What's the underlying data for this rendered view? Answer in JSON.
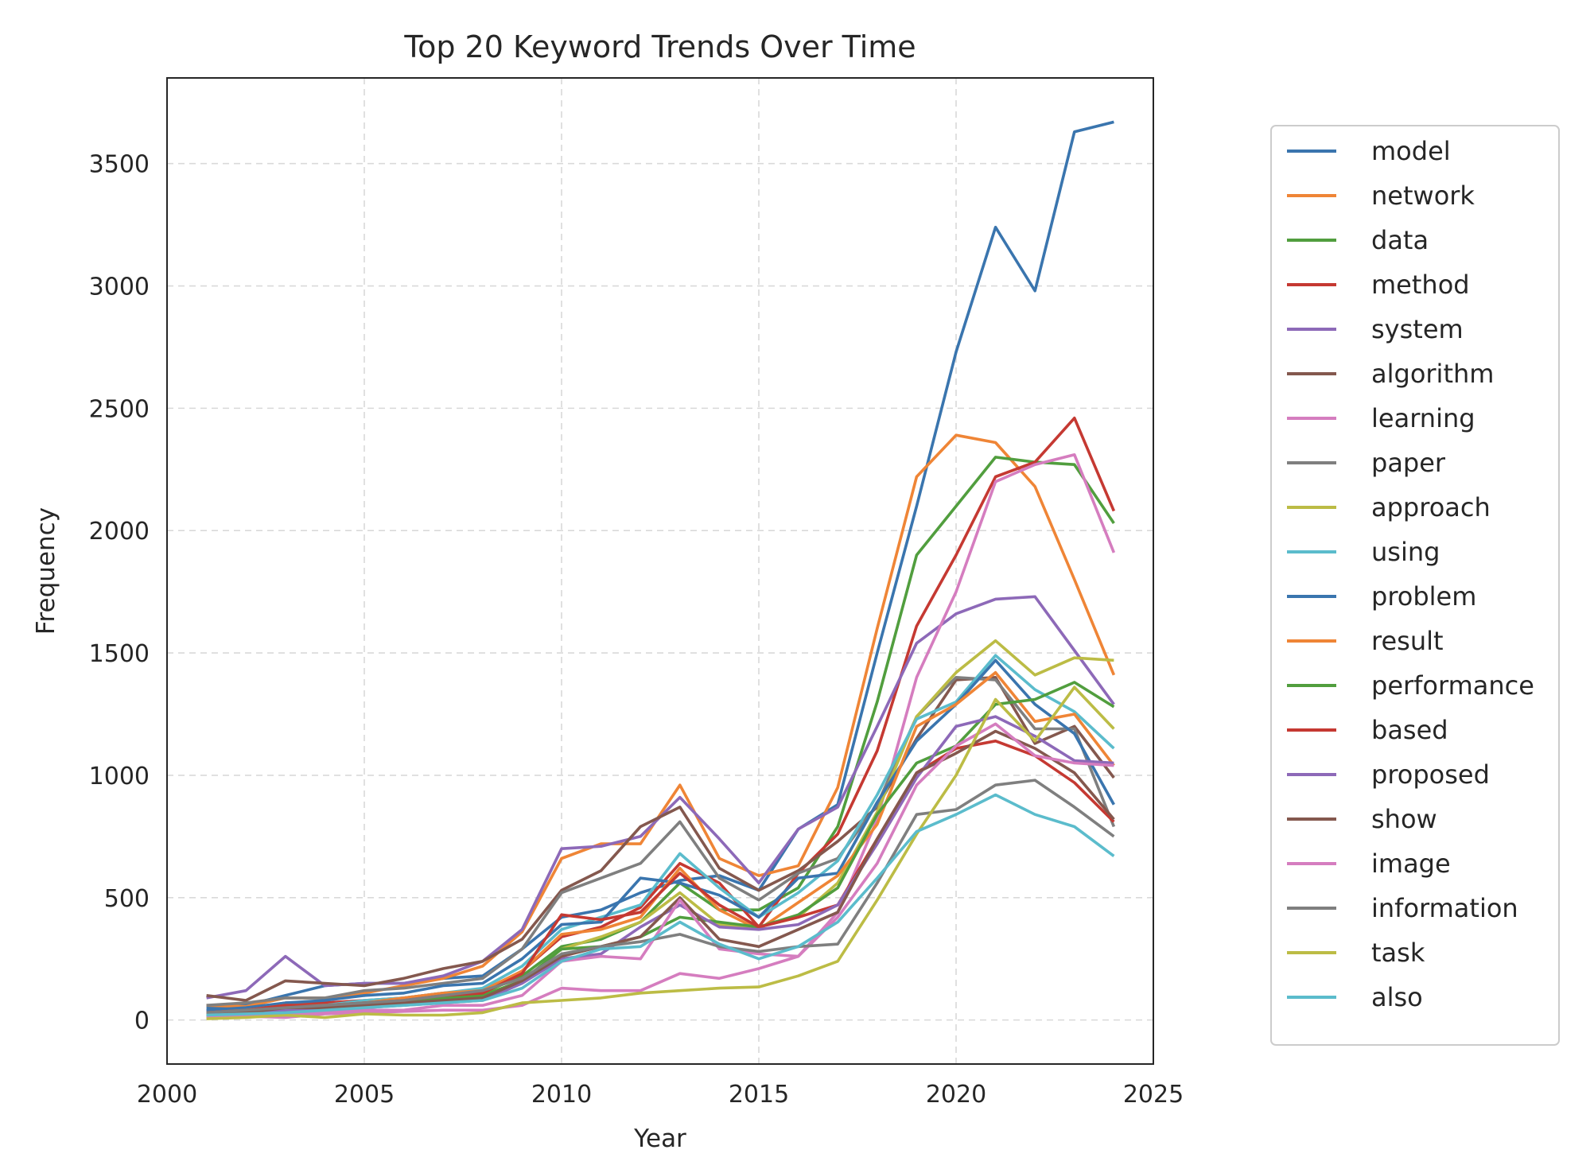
{
  "chart_data": {
    "type": "line",
    "title": "Top 20 Keyword Trends Over Time",
    "xlabel": "Year",
    "ylabel": "Frequency",
    "xlim": [
      2000,
      2025
    ],
    "ylim": [
      -180,
      3850
    ],
    "xticks": [
      2000,
      2005,
      2010,
      2015,
      2020,
      2025
    ],
    "yticks": [
      0,
      500,
      1000,
      1500,
      2000,
      2500,
      3000,
      3500
    ],
    "grid": true,
    "legend_position": "right",
    "x": [
      2001,
      2002,
      2003,
      2004,
      2005,
      2006,
      2007,
      2008,
      2009,
      2010,
      2011,
      2012,
      2013,
      2014,
      2015,
      2016,
      2017,
      2018,
      2019,
      2020,
      2021,
      2022,
      2023,
      2024
    ],
    "series": [
      {
        "name": "model",
        "color": "#3a75ae",
        "values": [
          50,
          60,
          100,
          140,
          150,
          150,
          170,
          180,
          290,
          420,
          450,
          520,
          570,
          590,
          530,
          780,
          880,
          1500,
          2100,
          2730,
          3240,
          2980,
          3630,
          3670
        ]
      },
      {
        "name": "network",
        "color": "#ef8536",
        "values": [
          60,
          55,
          90,
          90,
          110,
          140,
          170,
          220,
          360,
          660,
          720,
          720,
          960,
          660,
          590,
          630,
          950,
          1600,
          2220,
          2390,
          2360,
          2180,
          1800,
          1410
        ]
      },
      {
        "name": "data",
        "color": "#519e3e",
        "values": [
          30,
          40,
          60,
          60,
          70,
          80,
          100,
          110,
          180,
          300,
          330,
          400,
          560,
          450,
          450,
          540,
          790,
          1300,
          1900,
          2100,
          2300,
          2280,
          2270,
          2030
        ]
      },
      {
        "name": "method",
        "color": "#c53932",
        "values": [
          40,
          45,
          70,
          70,
          80,
          90,
          110,
          120,
          200,
          340,
          380,
          460,
          640,
          560,
          380,
          600,
          760,
          1100,
          1610,
          1900,
          2220,
          2280,
          2460,
          2080
        ]
      },
      {
        "name": "system",
        "color": "#8d69b8",
        "values": [
          90,
          120,
          260,
          140,
          150,
          150,
          180,
          240,
          370,
          700,
          710,
          750,
          910,
          740,
          560,
          780,
          870,
          1200,
          1540,
          1660,
          1720,
          1730,
          1510,
          1290
        ]
      },
      {
        "name": "algorithm",
        "color": "#84584e",
        "values": [
          100,
          80,
          160,
          150,
          140,
          170,
          210,
          240,
          330,
          530,
          610,
          790,
          870,
          620,
          530,
          610,
          730,
          870,
          1150,
          1390,
          1400,
          1130,
          1200,
          990
        ]
      },
      {
        "name": "learning",
        "color": "#d57dbf",
        "values": [
          10,
          15,
          10,
          25,
          30,
          35,
          40,
          40,
          60,
          130,
          120,
          120,
          190,
          170,
          210,
          260,
          440,
          820,
          1400,
          1750,
          2200,
          2270,
          2310,
          1910
        ]
      },
      {
        "name": "paper",
        "color": "#7f7f7f",
        "values": [
          60,
          70,
          90,
          90,
          120,
          130,
          150,
          170,
          290,
          520,
          580,
          640,
          810,
          580,
          490,
          600,
          660,
          880,
          1240,
          1400,
          1390,
          1190,
          1190,
          790
        ]
      },
      {
        "name": "approach",
        "color": "#bcbc45",
        "values": [
          20,
          30,
          50,
          40,
          60,
          70,
          90,
          100,
          160,
          290,
          340,
          400,
          520,
          390,
          380,
          420,
          560,
          850,
          1240,
          1420,
          1550,
          1410,
          1480,
          1470
        ]
      },
      {
        "name": "using",
        "color": "#5bbccc",
        "values": [
          30,
          40,
          60,
          60,
          80,
          90,
          110,
          130,
          220,
          370,
          420,
          470,
          680,
          540,
          420,
          520,
          650,
          920,
          1230,
          1300,
          1490,
          1350,
          1260,
          1110
        ]
      },
      {
        "name": "problem",
        "color": "#3a75ae",
        "values": [
          40,
          50,
          70,
          80,
          100,
          110,
          140,
          150,
          250,
          390,
          400,
          580,
          560,
          510,
          420,
          580,
          600,
          890,
          1140,
          1290,
          1470,
          1290,
          1170,
          880
        ]
      },
      {
        "name": "result",
        "color": "#ef8536",
        "values": [
          30,
          40,
          60,
          60,
          70,
          90,
          110,
          120,
          200,
          350,
          370,
          420,
          620,
          450,
          370,
          480,
          590,
          800,
          1200,
          1290,
          1420,
          1220,
          1250,
          1040
        ]
      },
      {
        "name": "performance",
        "color": "#519e3e",
        "values": [
          20,
          25,
          40,
          50,
          60,
          70,
          90,
          100,
          160,
          290,
          300,
          340,
          420,
          400,
          380,
          430,
          540,
          840,
          1050,
          1120,
          1290,
          1310,
          1380,
          1280
        ]
      },
      {
        "name": "based",
        "color": "#c53932",
        "values": [
          30,
          40,
          60,
          60,
          70,
          80,
          100,
          110,
          190,
          430,
          410,
          440,
          600,
          470,
          380,
          420,
          470,
          740,
          1010,
          1110,
          1140,
          1080,
          970,
          810
        ]
      },
      {
        "name": "proposed",
        "color": "#8d69b8",
        "values": [
          20,
          25,
          40,
          40,
          50,
          60,
          70,
          80,
          150,
          250,
          270,
          380,
          470,
          380,
          370,
          390,
          470,
          720,
          990,
          1200,
          1240,
          1160,
          1060,
          1050
        ]
      },
      {
        "name": "show",
        "color": "#84584e",
        "values": [
          20,
          30,
          50,
          50,
          60,
          70,
          80,
          90,
          160,
          260,
          300,
          340,
          500,
          330,
          300,
          370,
          440,
          740,
          1010,
          1090,
          1180,
          1110,
          1010,
          820
        ]
      },
      {
        "name": "image",
        "color": "#d57dbf",
        "values": [
          10,
          15,
          20,
          30,
          40,
          40,
          60,
          60,
          100,
          240,
          260,
          250,
          490,
          290,
          270,
          260,
          420,
          640,
          960,
          1120,
          1210,
          1080,
          1050,
          1040
        ]
      },
      {
        "name": "information",
        "color": "#7f7f7f",
        "values": [
          30,
          40,
          50,
          60,
          70,
          80,
          100,
          120,
          170,
          270,
          300,
          320,
          350,
          300,
          280,
          300,
          310,
          560,
          840,
          860,
          960,
          980,
          870,
          750
        ]
      },
      {
        "name": "task",
        "color": "#bcbc45",
        "values": [
          5,
          10,
          20,
          10,
          25,
          20,
          20,
          30,
          70,
          80,
          90,
          110,
          120,
          130,
          135,
          180,
          240,
          490,
          760,
          1000,
          1310,
          1140,
          1360,
          1190
        ]
      },
      {
        "name": "also",
        "color": "#5bbccc",
        "values": [
          20,
          25,
          30,
          40,
          50,
          60,
          70,
          80,
          130,
          240,
          290,
          300,
          400,
          310,
          250,
          300,
          400,
          580,
          770,
          840,
          920,
          840,
          790,
          670
        ]
      }
    ]
  }
}
